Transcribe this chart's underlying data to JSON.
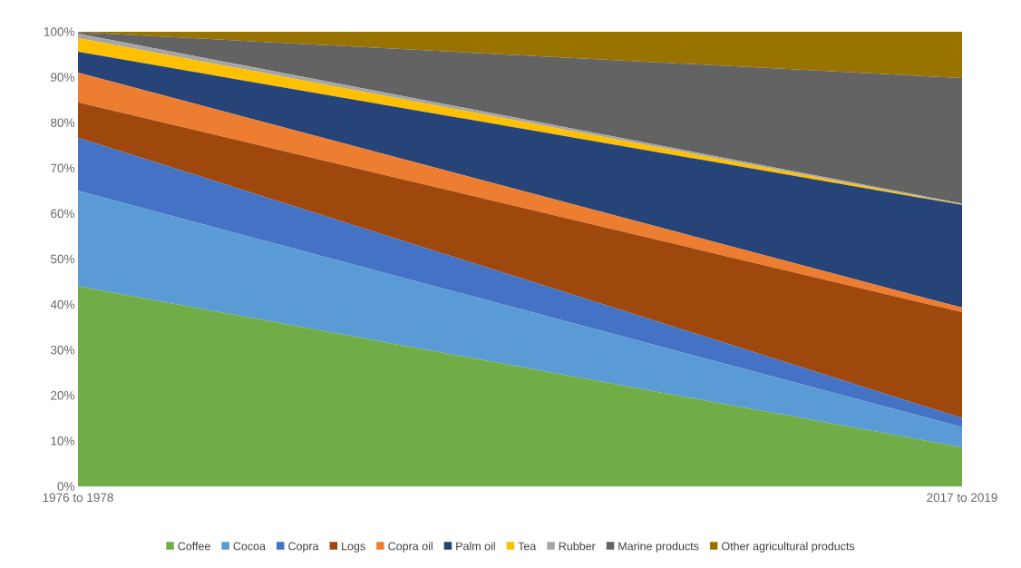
{
  "chart_data": {
    "type": "area",
    "stacked": true,
    "categories": [
      "1976 to 1978",
      "2017 to 2019"
    ],
    "series": [
      {
        "name": "Coffee",
        "color": "#70ad47",
        "values": [
          44,
          8.6
        ]
      },
      {
        "name": "Cocoa",
        "color": "#5b9bd5",
        "values": [
          21,
          4.4
        ]
      },
      {
        "name": "Copra",
        "color": "#4472c4",
        "values": [
          11.7,
          2
        ]
      },
      {
        "name": "Logs",
        "color": "#9e480e",
        "values": [
          7.8,
          23.3
        ]
      },
      {
        "name": "Copra oil",
        "color": "#ed7d31",
        "values": [
          6.5,
          1
        ]
      },
      {
        "name": "Palm oil",
        "color": "#264478",
        "values": [
          4.6,
          22.6
        ]
      },
      {
        "name": "Tea",
        "color": "#ffc000",
        "values": [
          3,
          0.1
        ]
      },
      {
        "name": "Rubber",
        "color": "#a5a5a5",
        "values": [
          1,
          0.2
        ]
      },
      {
        "name": "Marine products",
        "color": "#636363",
        "values": [
          0.3,
          27.6
        ]
      },
      {
        "name": "Other agricultural products",
        "color": "#997300",
        "values": [
          0.1,
          10.2
        ]
      }
    ],
    "ylim": [
      0,
      100
    ],
    "yticks": [
      {
        "value": 0,
        "label": "0%"
      },
      {
        "value": 10,
        "label": "10%"
      },
      {
        "value": 20,
        "label": "20%"
      },
      {
        "value": 30,
        "label": "30%"
      },
      {
        "value": 40,
        "label": "40%"
      },
      {
        "value": 50,
        "label": "50%"
      },
      {
        "value": 60,
        "label": "60%"
      },
      {
        "value": 70,
        "label": "70%"
      },
      {
        "value": 80,
        "label": "80%"
      },
      {
        "value": 90,
        "label": "90%"
      },
      {
        "value": 100,
        "label": "100%"
      }
    ],
    "legend": "bottom"
  }
}
